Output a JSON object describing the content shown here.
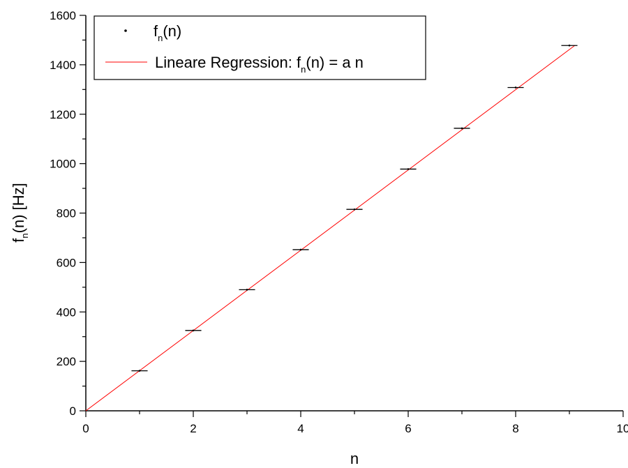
{
  "chart_data": {
    "type": "scatter",
    "xlabel": "n",
    "ylabel_main": "f",
    "ylabel_sub": "n",
    "ylabel_rest": "(n) [Hz]",
    "xlim": [
      0,
      10
    ],
    "ylim": [
      0,
      1600
    ],
    "xticks": [
      0,
      2,
      4,
      6,
      8,
      10
    ],
    "yticks": [
      0,
      200,
      400,
      600,
      800,
      1000,
      1200,
      1400,
      1600
    ],
    "grid": false,
    "legend_position": "top-left",
    "series": [
      {
        "name": "f_n(n)",
        "kind": "points",
        "marker": "dot-with-horizontal-errorbar",
        "x": [
          1,
          2,
          3,
          4,
          5,
          6,
          7,
          8,
          9
        ],
        "y": [
          162,
          325,
          490,
          652,
          815,
          978,
          1143,
          1308,
          1478
        ],
        "xerr": 0.15,
        "color": "#000000"
      },
      {
        "name": "Lineare Regression: f_n(n) = a n",
        "kind": "line",
        "x": [
          0,
          9.1
        ],
        "y": [
          0,
          1478
        ],
        "color": "#ff0000"
      }
    ],
    "legend": [
      {
        "main": "f",
        "sub": "n",
        "rest": "(n)",
        "symbol": "dot"
      },
      {
        "prefix": "Lineare Regression: ",
        "main": "f",
        "sub": "n",
        "rest": "(n) = a n",
        "symbol": "line"
      }
    ]
  }
}
